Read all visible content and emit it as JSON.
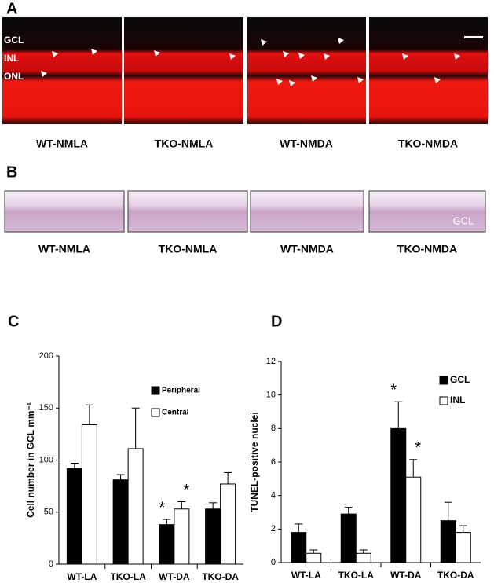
{
  "panel_a": {
    "label": "A",
    "layer_labels": [
      "GCL",
      "INL",
      "ONL"
    ],
    "captions": [
      "WT-NMLA",
      "TKO-NMLA",
      "WT-NMDA",
      "TKO-NMDA"
    ]
  },
  "panel_b": {
    "label": "B",
    "overlay_label": "GCL",
    "captions": [
      "WT-NMLA",
      "TKO-NMLA",
      "WT-NMDA",
      "TKO-NMDA"
    ]
  },
  "chart_data": [
    {
      "type": "bar",
      "title": "C",
      "y_label": "Cell number in GCL mm⁻¹",
      "categories": [
        "WT-LA",
        "TKO-LA",
        "WT-DA",
        "TKO-DA"
      ],
      "series": [
        {
          "name": "Peripheral",
          "color": "#000000",
          "values": [
            92,
            81,
            38,
            53
          ],
          "errors": [
            5,
            5,
            5,
            6
          ]
        },
        {
          "name": "Central",
          "color": "#ffffff",
          "values": [
            134,
            111,
            53,
            77
          ],
          "errors": [
            19,
            39,
            7,
            11
          ]
        }
      ],
      "ylim": [
        0,
        200
      ],
      "yticks": [
        0,
        50,
        100,
        150,
        200
      ],
      "annotations": [
        "*",
        "*"
      ]
    },
    {
      "type": "bar",
      "title": "D",
      "y_label": "TUNEL-positive nuclei",
      "categories": [
        "WT-LA",
        "TKO-LA",
        "WT-DA",
        "TKO-DA"
      ],
      "series": [
        {
          "name": "GCL",
          "color": "#000000",
          "values": [
            1.8,
            2.9,
            8.0,
            2.5
          ],
          "errors": [
            0.5,
            0.4,
            1.6,
            1.1
          ]
        },
        {
          "name": "INL",
          "color": "#ffffff",
          "values": [
            0.55,
            0.55,
            5.1,
            1.8
          ],
          "errors": [
            0.2,
            0.2,
            1.05,
            0.4
          ]
        }
      ],
      "ylim": [
        0,
        12
      ],
      "yticks": [
        0,
        2,
        4,
        6,
        8,
        10,
        12
      ],
      "annotations": [
        "*",
        "*"
      ]
    }
  ]
}
